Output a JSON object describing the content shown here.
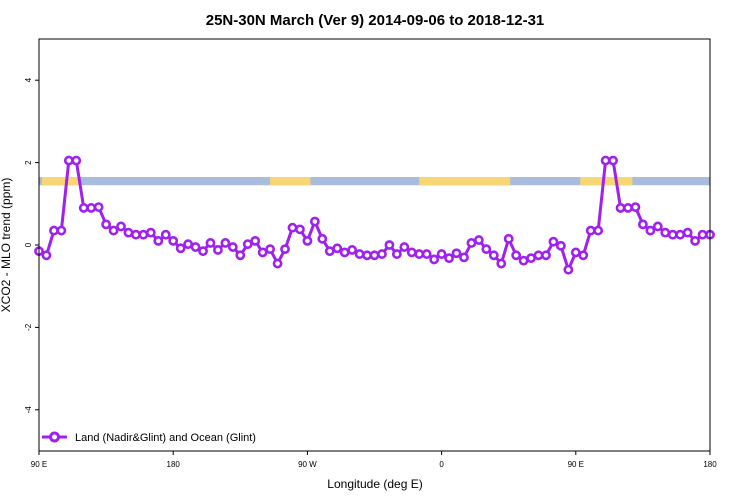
{
  "chart_data": {
    "type": "line",
    "title": "25N-30N March (Ver 9)   2014-09-06 to 2018-12-31",
    "xlabel": "Longitude (deg E)",
    "ylabel": "XCO2 - MLO trend (ppm)",
    "xlim": [
      90,
      540
    ],
    "ylim": [
      -5,
      5
    ],
    "x_ticks": [
      {
        "value": 90,
        "label": "90 E"
      },
      {
        "value": 180,
        "label": "180"
      },
      {
        "value": 270,
        "label": "90 W"
      },
      {
        "value": 360,
        "label": "0"
      },
      {
        "value": 450,
        "label": "90 E"
      },
      {
        "value": 540,
        "label": "180"
      }
    ],
    "y_ticks": [
      {
        "value": -4,
        "label": "-4"
      },
      {
        "value": -2,
        "label": "-2"
      },
      {
        "value": 0,
        "label": "0"
      },
      {
        "value": 2,
        "label": "2"
      },
      {
        "value": 4,
        "label": "4"
      }
    ],
    "grid": false,
    "legend_position": "bottom-left",
    "land_ocean_strip": {
      "y_range": [
        1.45,
        1.65
      ],
      "ocean_color": "#a7bddb",
      "land_color": "#f7d774",
      "land_segments": [
        [
          92,
          117
        ],
        [
          245,
          272
        ],
        [
          345,
          406
        ],
        [
          453,
          488
        ]
      ]
    },
    "series": [
      {
        "name": "Land (Nadir&Glint) and Ocean (Glint)",
        "color": "#a020f0",
        "x": [
          90,
          95,
          100,
          105,
          110,
          115,
          120,
          125,
          130,
          135,
          140,
          145,
          150,
          155,
          160,
          165,
          170,
          175,
          180,
          185,
          190,
          195,
          200,
          205,
          210,
          215,
          220,
          225,
          230,
          235,
          240,
          245,
          250,
          255,
          260,
          265,
          270,
          275,
          280,
          285,
          290,
          295,
          300,
          305,
          310,
          315,
          320,
          325,
          330,
          335,
          340,
          345,
          350,
          355,
          360,
          365,
          370,
          375,
          380,
          385,
          390,
          395,
          400,
          405,
          410,
          415,
          420,
          425,
          430,
          435,
          440,
          445,
          450,
          455,
          460,
          465,
          470,
          475,
          480,
          485,
          490,
          495,
          500,
          505,
          510,
          515,
          520,
          525,
          530,
          535,
          540
        ],
        "y": [
          -0.15,
          -0.25,
          0.35,
          0.35,
          2.05,
          2.05,
          0.9,
          0.9,
          0.92,
          0.5,
          0.35,
          0.45,
          0.3,
          0.25,
          0.25,
          0.3,
          0.1,
          0.25,
          0.1,
          -0.08,
          0.02,
          -0.05,
          -0.15,
          0.05,
          -0.12,
          0.05,
          -0.05,
          -0.25,
          0.02,
          0.1,
          -0.18,
          -0.1,
          -0.45,
          -0.1,
          0.42,
          0.38,
          0.1,
          0.57,
          0.15,
          -0.15,
          -0.08,
          -0.18,
          -0.12,
          -0.22,
          -0.25,
          -0.25,
          -0.22,
          0.0,
          -0.22,
          -0.05,
          -0.18,
          -0.22,
          -0.22,
          -0.35,
          -0.22,
          -0.32,
          -0.2,
          -0.3,
          0.05,
          0.12,
          -0.1,
          -0.25,
          -0.45,
          0.15,
          -0.25,
          -0.38,
          -0.32,
          -0.25,
          -0.25,
          0.08,
          -0.02,
          -0.6,
          -0.18,
          -0.25,
          0.35,
          0.35,
          2.05,
          2.05,
          0.9,
          0.9,
          0.92,
          0.5,
          0.35,
          0.45,
          0.3,
          0.25,
          0.25,
          0.3,
          0.1,
          0.25,
          0.25
        ]
      }
    ]
  }
}
